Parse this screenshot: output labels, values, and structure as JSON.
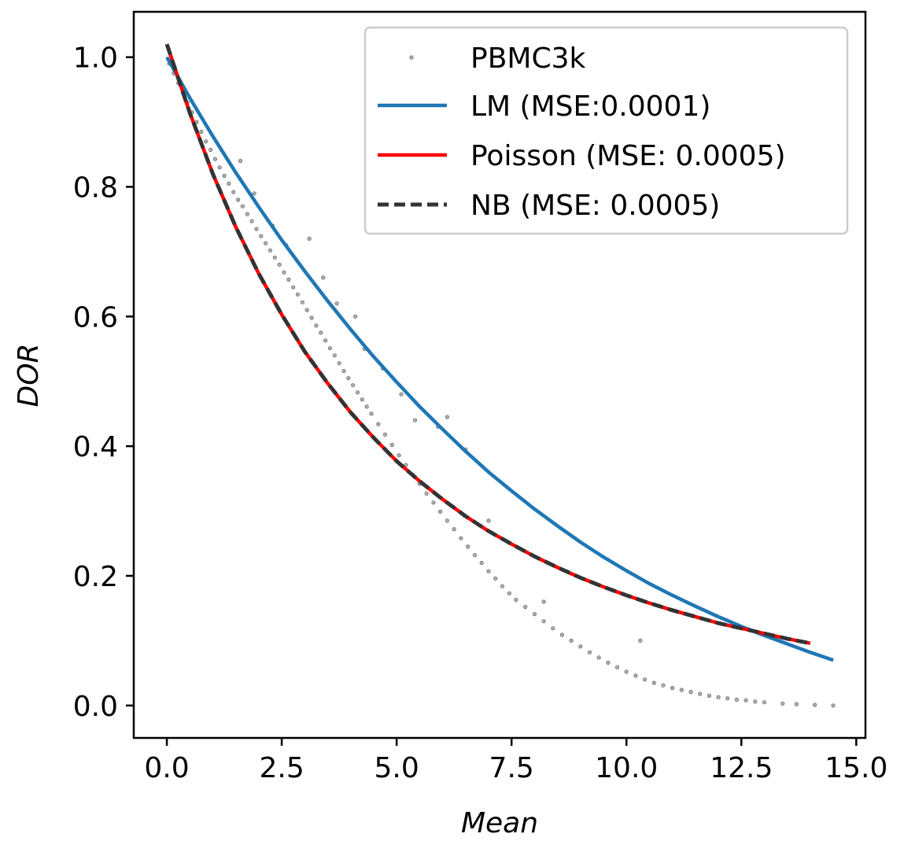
{
  "chart_data": {
    "type": "scatter",
    "title": "",
    "xlabel": "Mean",
    "ylabel": "DOR",
    "xlim": [
      -0.72,
      15.2
    ],
    "ylim": [
      -0.05,
      1.07
    ],
    "xticks": [
      0.0,
      2.5,
      5.0,
      7.5,
      10.0,
      12.5,
      15.0
    ],
    "xtick_labels": [
      "0.0",
      "2.5",
      "5.0",
      "7.5",
      "10.0",
      "12.5",
      "15.0"
    ],
    "yticks": [
      0.0,
      0.2,
      0.4,
      0.6,
      0.8,
      1.0
    ],
    "ytick_labels": [
      "0.0",
      "0.2",
      "0.4",
      "0.6",
      "0.8",
      "1.0"
    ],
    "grid": false,
    "legend_position": "top-right",
    "series": [
      {
        "name": "PBMC3k",
        "kind": "scatter",
        "color": "#9a9a9a",
        "x": [
          0.05,
          0.15,
          0.25,
          0.35,
          0.45,
          0.55,
          0.65,
          0.75,
          0.85,
          0.95,
          1.05,
          1.15,
          1.25,
          1.35,
          1.45,
          1.55,
          1.65,
          1.75,
          1.85,
          1.95,
          2.05,
          2.15,
          2.25,
          2.35,
          2.45,
          2.55,
          2.65,
          2.75,
          2.85,
          2.95,
          3.05,
          3.15,
          3.25,
          3.35,
          3.45,
          3.55,
          3.65,
          3.75,
          3.85,
          3.95,
          4.05,
          4.15,
          4.25,
          4.35,
          4.45,
          4.6,
          4.75,
          4.9,
          5.05,
          5.2,
          5.35,
          5.5,
          5.65,
          5.8,
          5.95,
          6.1,
          6.25,
          6.4,
          6.55,
          6.7,
          6.85,
          7.0,
          7.15,
          7.3,
          7.45,
          7.6,
          7.8,
          8.0,
          8.2,
          8.4,
          8.6,
          8.8,
          9.0,
          9.2,
          9.4,
          9.6,
          9.8,
          10.0,
          10.2,
          10.4,
          10.6,
          10.8,
          11.0,
          11.2,
          11.4,
          11.6,
          11.8,
          12.0,
          12.2,
          12.4,
          12.6,
          12.8,
          13.0,
          13.4,
          13.7,
          14.1,
          14.5,
          1.6,
          1.9,
          2.3,
          2.6,
          3.1,
          3.4,
          3.7,
          4.1,
          4.3,
          4.7,
          5.1,
          5.4,
          5.9,
          6.1,
          6.5,
          7.0,
          8.2,
          10.3
        ],
        "y": [
          0.99,
          0.975,
          0.96,
          0.945,
          0.93,
          0.915,
          0.9,
          0.885,
          0.87,
          0.857,
          0.843,
          0.83,
          0.817,
          0.805,
          0.792,
          0.78,
          0.77,
          0.758,
          0.747,
          0.735,
          0.724,
          0.713,
          0.702,
          0.691,
          0.68,
          0.668,
          0.657,
          0.645,
          0.634,
          0.622,
          0.61,
          0.598,
          0.586,
          0.575,
          0.563,
          0.551,
          0.54,
          0.528,
          0.516,
          0.505,
          0.494,
          0.483,
          0.472,
          0.461,
          0.45,
          0.434,
          0.418,
          0.402,
          0.386,
          0.371,
          0.356,
          0.342,
          0.327,
          0.313,
          0.299,
          0.285,
          0.272,
          0.258,
          0.245,
          0.232,
          0.22,
          0.207,
          0.196,
          0.184,
          0.173,
          0.163,
          0.152,
          0.141,
          0.13,
          0.119,
          0.109,
          0.1,
          0.091,
          0.082,
          0.074,
          0.066,
          0.059,
          0.052,
          0.046,
          0.04,
          0.035,
          0.031,
          0.027,
          0.024,
          0.021,
          0.018,
          0.015,
          0.013,
          0.011,
          0.009,
          0.008,
          0.006,
          0.005,
          0.003,
          0.002,
          0.001,
          0.0,
          0.84,
          0.79,
          0.74,
          0.71,
          0.72,
          0.66,
          0.62,
          0.6,
          0.55,
          0.52,
          0.48,
          0.44,
          0.43,
          0.445,
          0.395,
          0.285,
          0.16,
          0.1
        ]
      },
      {
        "name": "LM (MSE:0.0001)",
        "kind": "line",
        "color": "#1f77b4",
        "style": "solid",
        "x": [
          0.0,
          0.5,
          1.0,
          1.5,
          2.0,
          2.5,
          3.0,
          3.5,
          4.0,
          4.5,
          5.0,
          5.5,
          6.0,
          6.5,
          7.0,
          7.5,
          8.0,
          8.5,
          9.0,
          9.5,
          10.0,
          10.5,
          11.0,
          11.5,
          12.0,
          12.5,
          13.0,
          13.5,
          14.0,
          14.5
        ],
        "y": [
          1.0,
          0.937,
          0.878,
          0.822,
          0.769,
          0.718,
          0.67,
          0.624,
          0.58,
          0.538,
          0.499,
          0.461,
          0.426,
          0.392,
          0.36,
          0.331,
          0.303,
          0.277,
          0.252,
          0.229,
          0.208,
          0.188,
          0.17,
          0.153,
          0.137,
          0.122,
          0.108,
          0.095,
          0.082,
          0.07
        ]
      },
      {
        "name": "Poisson (MSE: 0.0005)",
        "kind": "line",
        "color": "#ff0000",
        "style": "solid",
        "x": [
          0.0,
          0.5,
          1.0,
          1.5,
          2.0,
          2.5,
          3.0,
          3.5,
          4.0,
          4.5,
          5.0,
          5.5,
          6.0,
          6.5,
          7.0,
          7.5,
          8.0,
          8.5,
          9.0,
          9.5,
          10.0,
          10.5,
          11.0,
          11.5,
          12.0,
          12.5,
          13.0,
          13.5,
          14.0
        ],
        "y": [
          1.02,
          0.914,
          0.82,
          0.738,
          0.666,
          0.603,
          0.546,
          0.497,
          0.452,
          0.413,
          0.377,
          0.346,
          0.318,
          0.292,
          0.269,
          0.249,
          0.23,
          0.213,
          0.197,
          0.183,
          0.17,
          0.158,
          0.147,
          0.137,
          0.127,
          0.119,
          0.111,
          0.103,
          0.096
        ]
      },
      {
        "name": "NB (MSE: 0.0005)",
        "kind": "line",
        "color": "#333333",
        "style": "dashed",
        "x": [
          0.0,
          0.5,
          1.0,
          1.5,
          2.0,
          2.5,
          3.0,
          3.5,
          4.0,
          4.5,
          5.0,
          5.5,
          6.0,
          6.5,
          7.0,
          7.5,
          8.0,
          8.5,
          9.0,
          9.5,
          10.0,
          10.5,
          11.0,
          11.5,
          12.0,
          12.5,
          13.0,
          13.5,
          14.0
        ],
        "y": [
          1.02,
          0.914,
          0.82,
          0.738,
          0.666,
          0.603,
          0.546,
          0.497,
          0.452,
          0.413,
          0.377,
          0.346,
          0.318,
          0.292,
          0.269,
          0.249,
          0.23,
          0.213,
          0.197,
          0.183,
          0.17,
          0.158,
          0.147,
          0.137,
          0.127,
          0.119,
          0.111,
          0.103,
          0.096
        ]
      }
    ]
  }
}
